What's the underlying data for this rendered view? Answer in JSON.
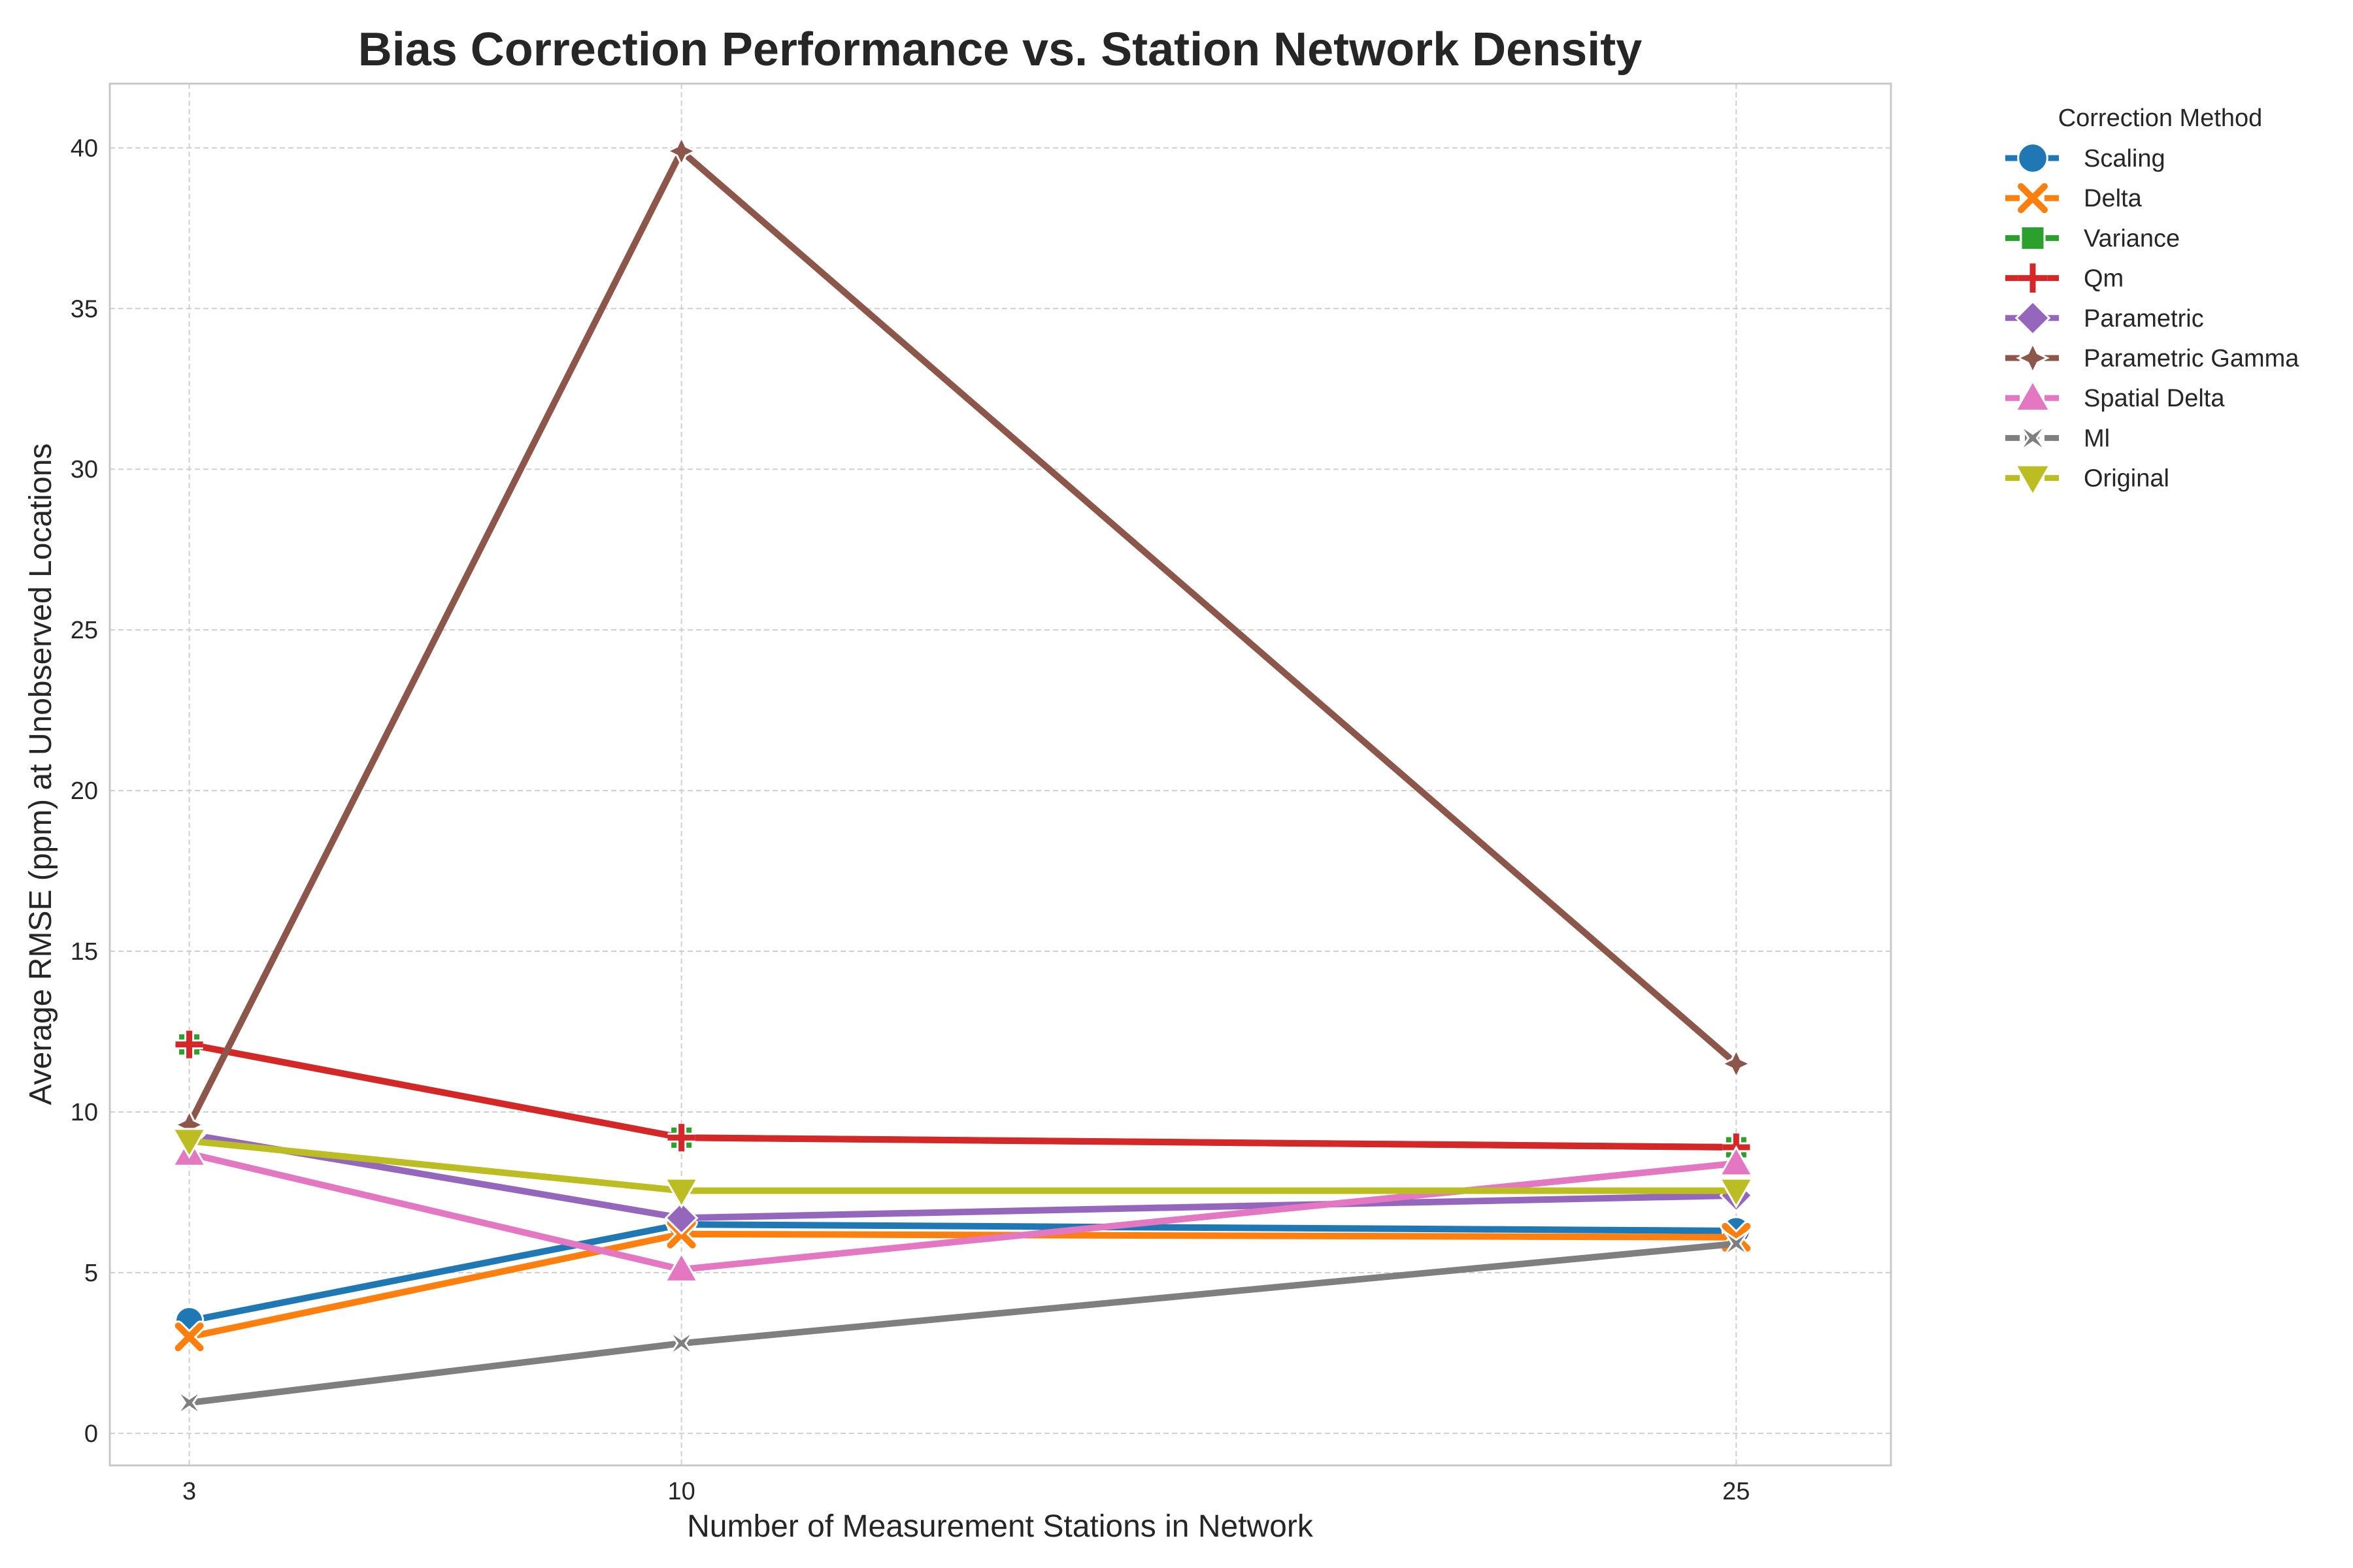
{
  "chart_data": {
    "type": "line",
    "title": "Bias Correction Performance vs. Station Network Density",
    "xlabel": "Number of Measurement Stations in Network",
    "ylabel": "Average RMSE (ppm) at Unobserved Locations",
    "x": [
      3,
      10,
      25
    ],
    "x_tick_labels": [
      "3",
      "10",
      "25"
    ],
    "xlim": [
      1.87,
      27.2
    ],
    "ylim": [
      -1,
      42
    ],
    "y_ticks": [
      0,
      5,
      10,
      15,
      20,
      25,
      30,
      35,
      40
    ],
    "y_tick_labels": [
      "0",
      "5",
      "10",
      "15",
      "20",
      "25",
      "30",
      "35",
      "40"
    ],
    "grid": true,
    "legend": {
      "title": "Correction Method",
      "placement": "outside-right-top"
    },
    "series": [
      {
        "name": "Scaling",
        "values": [
          3.5,
          6.5,
          6.3
        ],
        "color": "#1f77b4",
        "marker": "circle"
      },
      {
        "name": "Delta",
        "values": [
          3.0,
          6.2,
          6.1
        ],
        "color": "#ff7f0e",
        "marker": "x"
      },
      {
        "name": "Variance",
        "values": [
          12.1,
          9.2,
          8.9
        ],
        "color": "#2ca02c",
        "marker": "square"
      },
      {
        "name": "Qm",
        "values": [
          12.1,
          9.2,
          8.9
        ],
        "color": "#d62728",
        "marker": "plus"
      },
      {
        "name": "Parametric",
        "values": [
          9.3,
          6.7,
          7.4
        ],
        "color": "#9467bd",
        "marker": "diamond"
      },
      {
        "name": "Parametric Gamma",
        "values": [
          9.6,
          39.9,
          11.5
        ],
        "color": "#8c564b",
        "marker": "star4"
      },
      {
        "name": "Spatial Delta",
        "values": [
          8.7,
          5.1,
          8.4
        ],
        "color": "#e377c2",
        "marker": "triangle-up"
      },
      {
        "name": "Ml",
        "values": [
          0.95,
          2.8,
          5.9
        ],
        "color": "#7f7f7f",
        "marker": "star4x"
      },
      {
        "name": "Original",
        "values": [
          9.1,
          7.55,
          7.55
        ],
        "color": "#bcbd22",
        "marker": "triangle-down"
      }
    ]
  }
}
